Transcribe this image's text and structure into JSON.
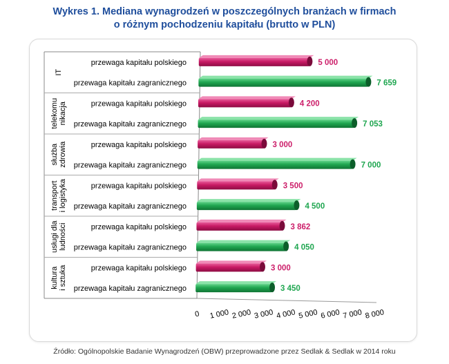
{
  "title_line1": "Wykres 1. Mediana wynagrodzeń w poszczególnych branżach w firmach",
  "title_line2": "o różnym pochodzeniu kapitału (brutto w PLN)",
  "source": "Źródło: Ogólnopolskie Badanie Wynagrodzeń (OBW) przeprowadzone przez Sedlak & Sedlak w 2014 roku",
  "colors": {
    "polish": "#cc1f6a",
    "foreign": "#1fa650"
  },
  "chart_data": {
    "type": "bar",
    "orientation": "horizontal",
    "title": "Mediana wynagrodzeń w poszczególnych branżach w firmach o różnym pochodzeniu kapitału (brutto w PLN)",
    "xlim": [
      0,
      8000
    ],
    "xticks": [
      "0",
      "1 000",
      "2 000",
      "3 000",
      "4 000",
      "5 000",
      "6 000",
      "7 000",
      "8 000"
    ],
    "groups": [
      {
        "name": "IT",
        "lines": [
          "IT"
        ],
        "bars": [
          {
            "label": "przewaga kapitału  polskiego",
            "kind": "polish",
            "value": 5000,
            "value_label": "5 000"
          },
          {
            "label": "przewaga kapitału  zagranicznego",
            "kind": "foreign",
            "value": 7659,
            "value_label": "7 659"
          }
        ]
      },
      {
        "name": "telekomunikacja",
        "lines": [
          "telekomu",
          "nikacja"
        ],
        "bars": [
          {
            "label": "przewaga kapitału  polskiego",
            "kind": "polish",
            "value": 4200,
            "value_label": "4 200"
          },
          {
            "label": "przewaga kapitału  zagranicznego",
            "kind": "foreign",
            "value": 7053,
            "value_label": "7 053"
          }
        ]
      },
      {
        "name": "służba zdrowia",
        "lines": [
          "służba",
          "zdrowia"
        ],
        "bars": [
          {
            "label": "przewaga kapitału  polskiego",
            "kind": "polish",
            "value": 3000,
            "value_label": "3 000"
          },
          {
            "label": "przewaga kapitału  zagranicznego",
            "kind": "foreign",
            "value": 7000,
            "value_label": "7 000"
          }
        ]
      },
      {
        "name": "transport i logistyka",
        "lines": [
          "transport",
          "i logistyka"
        ],
        "bars": [
          {
            "label": "przewaga kapitału  polskiego",
            "kind": "polish",
            "value": 3500,
            "value_label": "3 500"
          },
          {
            "label": "przewaga kapitału  zagranicznego",
            "kind": "foreign",
            "value": 4500,
            "value_label": "4 500"
          }
        ]
      },
      {
        "name": "usługi dla ludności",
        "lines": [
          "usługi dla",
          "ludności"
        ],
        "bars": [
          {
            "label": "przewaga kapitału  polskiego",
            "kind": "polish",
            "value": 3862,
            "value_label": "3 862"
          },
          {
            "label": "przewaga kapitału  zagranicznego",
            "kind": "foreign",
            "value": 4050,
            "value_label": "4 050"
          }
        ]
      },
      {
        "name": "kultura i sztuka",
        "lines": [
          "kultura",
          "i sztuka"
        ],
        "bars": [
          {
            "label": "przewaga kapitału  polskiego",
            "kind": "polish",
            "value": 3000,
            "value_label": "3 000"
          },
          {
            "label": "przewaga kapitału  zagranicznego",
            "kind": "foreign",
            "value": 3450,
            "value_label": "3 450"
          }
        ]
      }
    ]
  }
}
